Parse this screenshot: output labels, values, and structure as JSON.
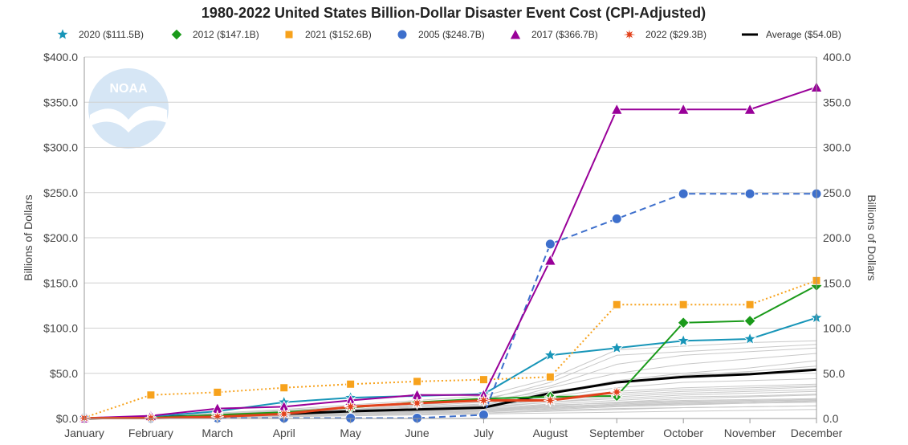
{
  "chart_data": {
    "type": "line",
    "title": "1980-2022 United States Billion-Dollar Disaster Event Cost (CPI-Adjusted)",
    "ylabel_left": "Billions of Dollars",
    "ylabel_right": "Billions of Dollars",
    "ylim": [
      0,
      400
    ],
    "y_ticks": [
      "$0.0",
      "$50.0",
      "$100.0",
      "$150.0",
      "$200.0",
      "$250.0",
      "$300.0",
      "$350.0",
      "$400.0"
    ],
    "y_ticks_right": [
      "0.0",
      "50.0",
      "100.0",
      "150.0",
      "200.0",
      "250.0",
      "300.0",
      "350.0",
      "400.0"
    ],
    "categories": [
      "January",
      "February",
      "March",
      "April",
      "May",
      "June",
      "July",
      "August",
      "September",
      "October",
      "November",
      "December"
    ],
    "logo_text": "NOAA",
    "grid": true,
    "legend_position": "top",
    "series": [
      {
        "name": "2020 ($111.5B)",
        "color": "#1795b8",
        "marker": "star",
        "dash": "solid",
        "values": [
          0.5,
          2,
          8,
          18,
          23,
          25,
          27,
          70,
          78,
          86,
          88,
          111.5
        ]
      },
      {
        "name": "2012 ($147.1B)",
        "color": "#1a9a1a",
        "marker": "diamond",
        "dash": "solid",
        "values": [
          0.5,
          1,
          4,
          7,
          12,
          18,
          22,
          24,
          25,
          106,
          108,
          147.1
        ]
      },
      {
        "name": "2021 ($152.6B)",
        "color": "#f7a21c",
        "marker": "square",
        "dash": "dot",
        "values": [
          1,
          26,
          29,
          34,
          38,
          41,
          43,
          46,
          126,
          126,
          126,
          152.6
        ]
      },
      {
        "name": "2005 ($248.7B)",
        "color": "#3d6fcc",
        "marker": "circle",
        "dash": "dash",
        "values": [
          0.5,
          0.5,
          0.5,
          0.5,
          0.5,
          0.5,
          4,
          193,
          221,
          248.7,
          248.7,
          248.7
        ]
      },
      {
        "name": "2017 ($366.7B)",
        "color": "#990099",
        "marker": "triangle",
        "dash": "solid",
        "values": [
          0.5,
          3,
          11,
          13,
          20,
          26,
          26,
          175,
          342,
          342,
          342,
          366.7
        ]
      },
      {
        "name": "2022 ($29.3B)",
        "color": "#e2421c",
        "marker": "burst",
        "dash": "solid",
        "values": [
          0.5,
          0.5,
          2,
          5,
          13,
          17,
          20,
          20,
          29.3,
          null,
          null,
          null
        ]
      },
      {
        "name": "Average ($54.0B)",
        "color": "#000000",
        "marker": "none",
        "dash": "solid",
        "values": [
          0,
          1.5,
          3,
          5,
          8,
          10,
          12,
          28,
          40,
          46,
          49,
          54
        ]
      }
    ],
    "background_years_note": "",
    "background_series": [
      [
        0,
        1,
        2,
        3,
        4,
        5,
        6,
        8,
        10,
        12,
        13,
        14
      ],
      [
        0,
        1,
        3,
        4,
        6,
        7,
        8,
        12,
        15,
        16,
        17,
        18
      ],
      [
        0,
        2,
        3,
        5,
        6,
        7,
        9,
        14,
        18,
        20,
        21,
        22
      ],
      [
        0,
        0,
        1,
        2,
        4,
        6,
        8,
        10,
        13,
        15,
        17,
        20
      ],
      [
        0,
        1,
        2,
        4,
        6,
        9,
        11,
        16,
        20,
        24,
        25,
        27
      ],
      [
        0,
        1,
        3,
        5,
        8,
        10,
        12,
        18,
        22,
        26,
        28,
        30
      ],
      [
        0,
        2,
        4,
        6,
        8,
        11,
        14,
        20,
        26,
        30,
        32,
        35
      ],
      [
        0,
        1,
        2,
        3,
        5,
        8,
        10,
        15,
        17,
        19,
        20,
        21
      ],
      [
        0,
        0,
        2,
        4,
        7,
        10,
        14,
        22,
        30,
        34,
        36,
        38
      ],
      [
        0,
        1,
        3,
        6,
        9,
        13,
        16,
        24,
        34,
        40,
        42,
        44
      ],
      [
        0,
        2,
        5,
        8,
        12,
        16,
        20,
        30,
        40,
        48,
        52,
        58
      ],
      [
        0,
        1,
        4,
        7,
        10,
        14,
        18,
        28,
        42,
        50,
        56,
        64
      ],
      [
        0,
        1,
        3,
        5,
        8,
        11,
        15,
        34,
        50,
        60,
        66,
        72
      ],
      [
        0,
        2,
        5,
        9,
        13,
        18,
        22,
        36,
        60,
        70,
        74,
        78
      ],
      [
        0,
        1,
        3,
        6,
        10,
        15,
        20,
        40,
        70,
        74,
        78,
        82
      ],
      [
        0,
        2,
        6,
        10,
        15,
        20,
        25,
        44,
        76,
        80,
        84,
        86
      ],
      [
        0,
        0,
        1,
        2,
        3,
        4,
        5,
        6,
        7,
        8,
        9,
        10
      ],
      [
        0,
        1,
        1,
        2,
        3,
        4,
        6,
        9,
        11,
        12,
        13,
        14
      ],
      [
        0,
        1,
        2,
        3,
        4,
        6,
        7,
        11,
        14,
        16,
        17,
        19
      ],
      [
        0,
        0,
        1,
        3,
        5,
        7,
        9,
        13,
        16,
        18,
        19,
        20
      ],
      [
        0,
        1,
        2,
        4,
        5,
        7,
        9,
        12,
        15,
        17,
        18,
        22
      ],
      [
        0,
        1,
        3,
        5,
        7,
        10,
        13,
        18,
        24,
        28,
        30,
        32
      ],
      [
        0,
        2,
        4,
        7,
        10,
        12,
        15,
        21,
        28,
        32,
        34,
        36
      ],
      [
        0,
        1,
        2,
        4,
        6,
        8,
        10,
        14,
        18,
        22,
        24,
        26
      ]
    ]
  }
}
